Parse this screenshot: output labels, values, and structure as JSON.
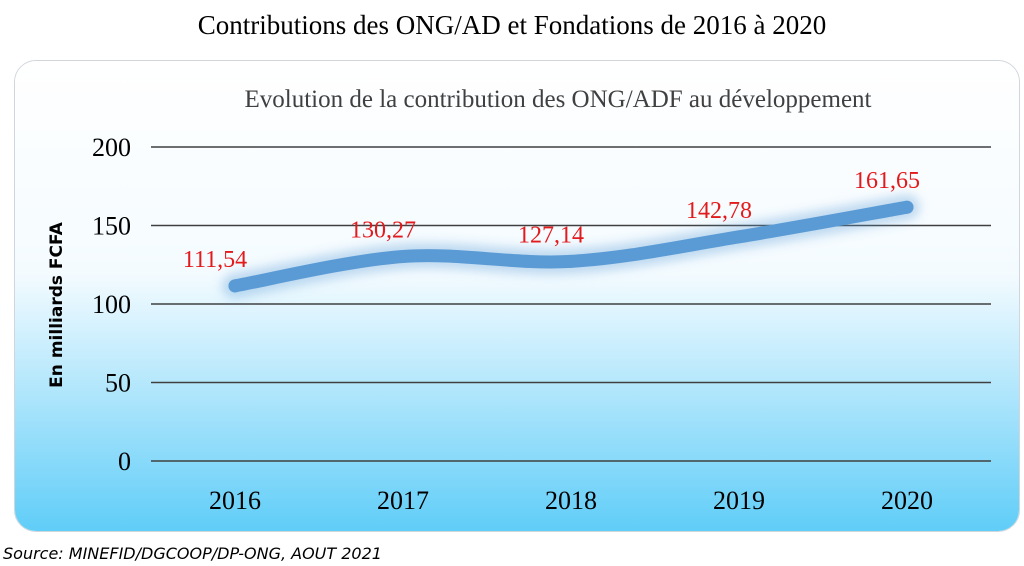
{
  "page": {
    "title": "Contributions des ONG/AD et Fondations de 2016 à 2020",
    "source": "Source: MINEFID/DGCOOP/DP-ONG, AOUT 2021"
  },
  "chart_data": {
    "type": "line",
    "title": "Evolution de la contribution des ONG/ADF au développement",
    "ylabel": "En milliards FCFA",
    "xlabel": "",
    "categories": [
      "2016",
      "2017",
      "2018",
      "2019",
      "2020"
    ],
    "series": [
      {
        "values": [
          111.54,
          130.27,
          127.14,
          142.78,
          161.65
        ],
        "labels": [
          "111,54",
          "130,27",
          "127,14",
          "142,78",
          "161,65"
        ],
        "color": "#5b9bd5",
        "smooth": true
      }
    ],
    "ylim": [
      0,
      200
    ],
    "yticks": [
      0,
      50,
      100,
      150,
      200
    ],
    "grid": true,
    "legend": "none",
    "colors": {
      "line": "#5b9bd5",
      "data_label": "#e31a1c",
      "gridline": "#404040",
      "background_top": "#ffffff",
      "background_bottom": "#5fcdf8"
    }
  }
}
